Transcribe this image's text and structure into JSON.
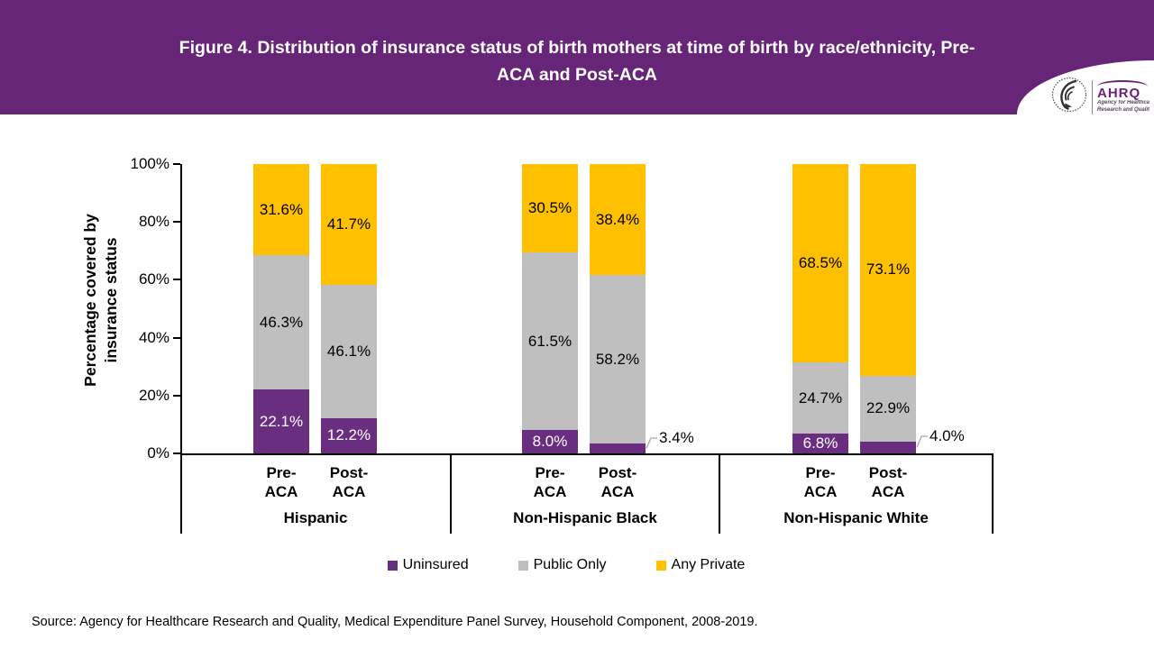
{
  "banner": {
    "title": "Figure 4. Distribution of insurance status of birth mothers at time of birth by race/ethnicity, Pre-ACA and Post-ACA",
    "bg_color": "#662577",
    "logo": {
      "org": "AHRQ",
      "tagline_line1": "Agency for Healthca",
      "tagline_line2": "Research and Qualit"
    }
  },
  "chart_data": {
    "type": "bar",
    "stacked": true,
    "title": "",
    "xlabel": "",
    "ylabel": "Percentage covered by\ninsurance status",
    "ylim": [
      0,
      100
    ],
    "yticks": [
      "0%",
      "20%",
      "40%",
      "60%",
      "80%",
      "100%"
    ],
    "grid": false,
    "legend_position": "bottom",
    "series": [
      {
        "name": "Uninsured",
        "color": "#692e80",
        "label_color": "#ffffff"
      },
      {
        "name": "Public Only",
        "color": "#bfbfbf",
        "label_color": "#000000"
      },
      {
        "name": "Any Private",
        "color": "#ffc000",
        "label_color": "#000000"
      }
    ],
    "groups": [
      {
        "label": "Hispanic",
        "bars": [
          {
            "label": "Pre-\nACA",
            "values": [
              22.1,
              46.3,
              31.6
            ]
          },
          {
            "label": "Post-\nACA",
            "values": [
              12.2,
              46.1,
              41.7
            ]
          }
        ]
      },
      {
        "label": "Non-Hispanic Black",
        "bars": [
          {
            "label": "Pre-\nACA",
            "values": [
              8.0,
              61.5,
              30.5
            ]
          },
          {
            "label": "Post-\nACA",
            "values": [
              3.4,
              58.2,
              38.4
            ]
          }
        ]
      },
      {
        "label": "Non-Hispanic White",
        "bars": [
          {
            "label": "Pre-\nACA",
            "values": [
              6.8,
              24.7,
              68.5
            ]
          },
          {
            "label": "Post-\nACA",
            "values": [
              4.0,
              22.9,
              73.1
            ]
          }
        ]
      }
    ]
  },
  "source": "Source: Agency for Healthcare Research and Quality, Medical Expenditure Panel Survey, Household Component, 2008-2019."
}
